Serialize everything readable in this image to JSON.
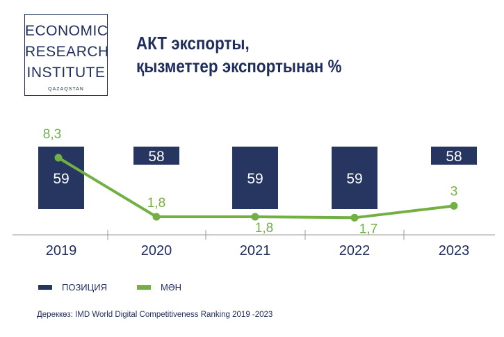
{
  "logo": {
    "line1": "ECONOMIC",
    "line2": "RESEARCH",
    "line3": "INSTITUTE",
    "line4": "QAZAQSTAN"
  },
  "title": {
    "line1": "АКТ экспорты,",
    "line2": "қызметтер экспортынан %"
  },
  "legend": {
    "position": "bottom-left",
    "items": [
      {
        "label": "ПОЗИЦИЯ",
        "color": "#263661"
      },
      {
        "label": "МӘН",
        "color": "#72b043"
      }
    ]
  },
  "source": "Дереккөз: IMD World Digital Competitiveness Ranking 2019 -2023",
  "chart_data": {
    "type": "bar+line",
    "categories": [
      "2019",
      "2020",
      "2021",
      "2022",
      "2023"
    ],
    "series": [
      {
        "name": "ПОЗИЦИЯ",
        "type": "bar",
        "color": "#263661",
        "values": [
          59,
          58,
          59,
          59,
          58
        ],
        "labels": [
          "59",
          "58",
          "59",
          "59",
          "58"
        ]
      },
      {
        "name": "МӘН",
        "type": "line",
        "color": "#72b043",
        "values": [
          8.3,
          1.8,
          1.8,
          1.7,
          3
        ],
        "labels": [
          "8,3",
          "1,8",
          "1,8",
          "1,7",
          "3"
        ]
      }
    ],
    "grid": false
  }
}
